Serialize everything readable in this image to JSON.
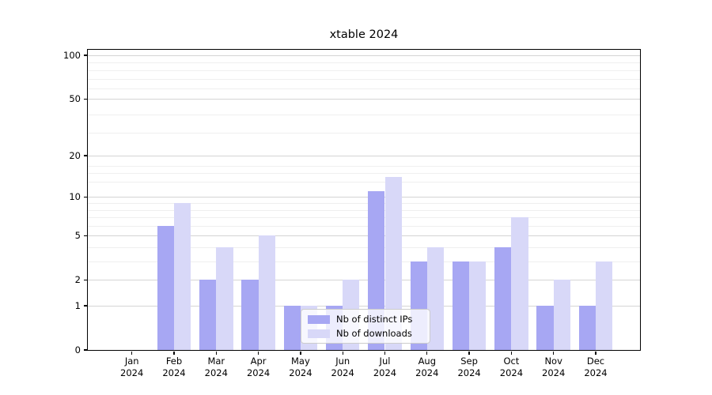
{
  "chart_data": {
    "type": "bar",
    "title": "xtable 2024",
    "categories": [
      "Jan",
      "Feb",
      "Mar",
      "Apr",
      "May",
      "Jun",
      "Jul",
      "Aug",
      "Sep",
      "Oct",
      "Nov",
      "Dec"
    ],
    "year_label": "2024",
    "series": [
      {
        "name": "Nb of distinct IPs",
        "color": "#a7a7f3",
        "values": [
          0,
          6,
          2,
          2,
          1,
          1,
          11,
          3,
          3,
          4,
          1,
          1
        ]
      },
      {
        "name": "Nb of downloads",
        "color": "#d8d8f8",
        "values": [
          0,
          9,
          4,
          5,
          1,
          2,
          14,
          4,
          3,
          7,
          2,
          3
        ]
      }
    ],
    "yscale": "log1p",
    "ylim": [
      0,
      110
    ],
    "yticks": [
      100,
      50,
      20,
      10,
      5,
      2,
      1,
      0
    ],
    "minor_gridlines": [
      3,
      4,
      6,
      7,
      8,
      9,
      13,
      15,
      17,
      29,
      39,
      59,
      69,
      79,
      89
    ],
    "grid": true,
    "legend_position": "lower center"
  },
  "colors": {
    "major_grid": "#d4d4d4",
    "minor_grid": "#efefef",
    "axis": "#000000",
    "background": "#ffffff",
    "legend_border": "#cccccc"
  }
}
